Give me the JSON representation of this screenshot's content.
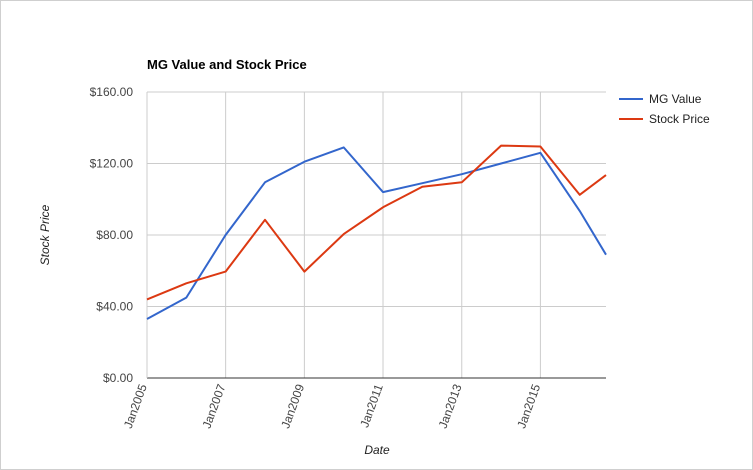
{
  "chart_data": {
    "type": "line",
    "title": "MG Value and Stock Price",
    "xlabel": "Date",
    "ylabel": "Stock Price",
    "x": [
      "2005-01",
      "2006-01",
      "2007-01",
      "2008-01",
      "2009-01",
      "2010-01",
      "2011-01",
      "2012-01",
      "2013-01",
      "2014-01",
      "2015-01",
      "2016-01",
      "2016-09"
    ],
    "x_ticks": [
      "Jan2005",
      "Jan2007",
      "Jan2009",
      "Jan2011",
      "Jan2013",
      "Jan2015"
    ],
    "y_ticks": [
      "$0.00",
      "$40.00",
      "$80.00",
      "$120.00",
      "$160.00"
    ],
    "ylim": [
      0,
      160
    ],
    "grid": true,
    "legend": "right",
    "series": [
      {
        "name": "MG Value",
        "color": "#3366cc",
        "values": [
          33,
          45,
          80,
          109.5,
          121,
          129,
          104,
          109,
          114,
          120,
          126,
          93.5,
          69
        ]
      },
      {
        "name": "Stock Price",
        "color": "#dc3912",
        "values": [
          44,
          53,
          59.5,
          88.5,
          59.5,
          80.5,
          95.5,
          107,
          109.5,
          130,
          129.5,
          102.5,
          113.5
        ]
      }
    ]
  }
}
